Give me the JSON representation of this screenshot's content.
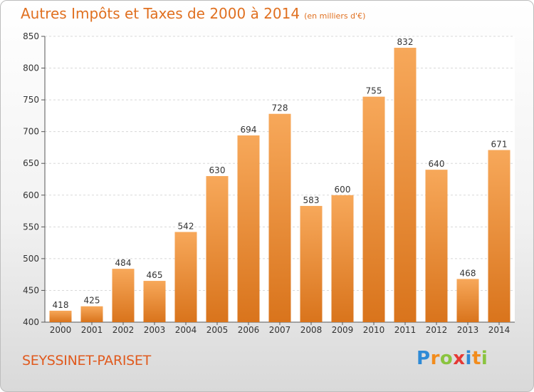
{
  "title": "Autres Impôts et Taxes de 2000 à 2014",
  "subtitle": "(en milliers d'€)",
  "city": "SEYSSINET-PARISET",
  "logo": {
    "letters": [
      "P",
      "r",
      "o",
      "x",
      "i",
      "t",
      "i"
    ],
    "colors": [
      "#2e8ad6",
      "#f28c1c",
      "#8ac43f",
      "#e53935",
      "#2e8ad6",
      "#f28c1c",
      "#8ac43f"
    ]
  },
  "colors": {
    "bar_top": "#f7a85a",
    "bar_bottom": "#d9741c",
    "title": "#e07020"
  },
  "chart_data": {
    "type": "bar",
    "categories": [
      "2000",
      "2001",
      "2002",
      "2003",
      "2004",
      "2005",
      "2006",
      "2007",
      "2008",
      "2009",
      "2010",
      "2011",
      "2012",
      "2013",
      "2014"
    ],
    "values": [
      418,
      425,
      484,
      465,
      542,
      630,
      694,
      728,
      583,
      600,
      755,
      832,
      640,
      468,
      671
    ],
    "ylim": [
      400,
      850
    ],
    "yticks": [
      400,
      450,
      500,
      550,
      600,
      650,
      700,
      750,
      800,
      850
    ],
    "grid": true
  }
}
